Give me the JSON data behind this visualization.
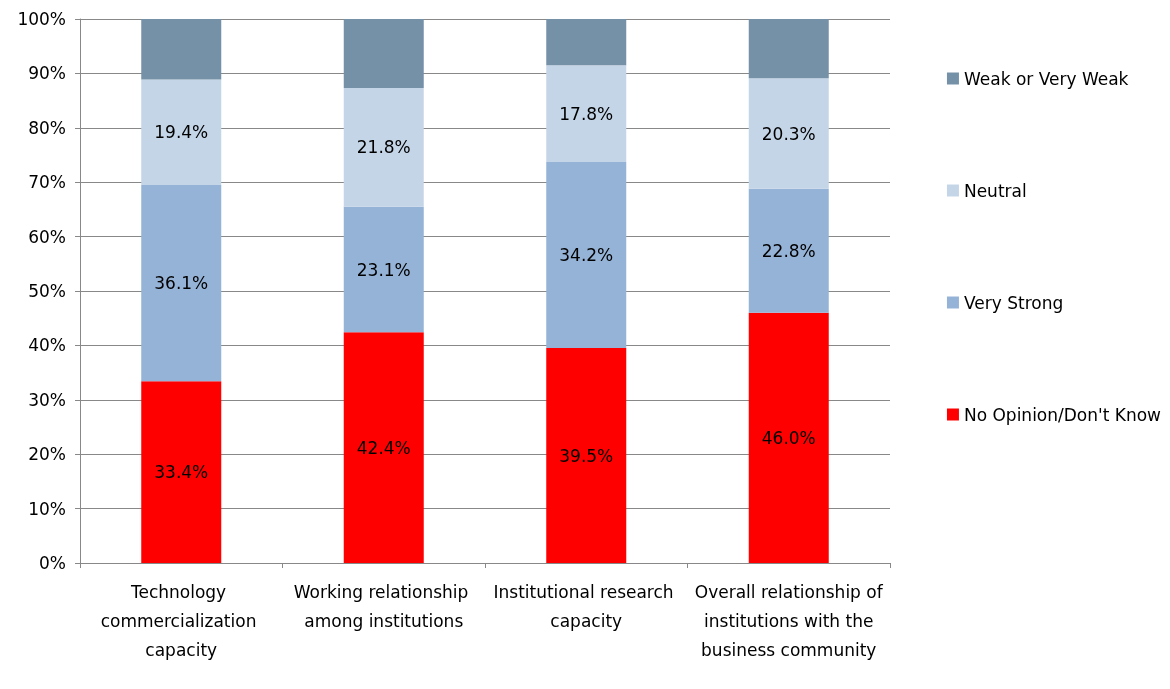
{
  "chart_data": {
    "type": "bar",
    "stacked": true,
    "categories": [
      "Technology commercialization capacity",
      "Working relationship among institutions",
      "Institutional research capacity",
      "Overall relationship of institutions with the business community"
    ],
    "series": [
      {
        "name": "No Opinion/Don't Know",
        "color": "#ff0000",
        "values": [
          33.4,
          42.4,
          39.5,
          46.0
        ],
        "value_labels": [
          "33.4%",
          "42.4%",
          "39.5%",
          "46.0%"
        ]
      },
      {
        "name": "Very Strong",
        "color": "#95b3d7",
        "values": [
          36.1,
          23.1,
          34.2,
          22.8
        ],
        "value_labels": [
          "36.1%",
          "23.1%",
          "34.2%",
          "22.8%"
        ]
      },
      {
        "name": "Neutral",
        "color": "#c4d5e8",
        "values": [
          19.4,
          21.8,
          17.8,
          20.3
        ],
        "value_labels": [
          "19.4%",
          "21.8%",
          "17.8%",
          "20.3%"
        ]
      },
      {
        "name": "Weak or Very Weak",
        "color": "#7491a8",
        "values": [
          11.1,
          12.7,
          8.5,
          10.9
        ]
      }
    ],
    "ylim": [
      0,
      100
    ],
    "yticks": [
      {
        "value": 0,
        "label": "0%"
      },
      {
        "value": 10,
        "label": "10%"
      },
      {
        "value": 20,
        "label": "20%"
      },
      {
        "value": 30,
        "label": "30%"
      },
      {
        "value": 40,
        "label": "40%"
      },
      {
        "value": 50,
        "label": "50%"
      },
      {
        "value": 60,
        "label": "60%"
      },
      {
        "value": 70,
        "label": "70%"
      },
      {
        "value": 80,
        "label": "80%"
      },
      {
        "value": 90,
        "label": "90%"
      },
      {
        "value": 100,
        "label": "100%"
      }
    ],
    "grid": "y",
    "legend": "right"
  }
}
